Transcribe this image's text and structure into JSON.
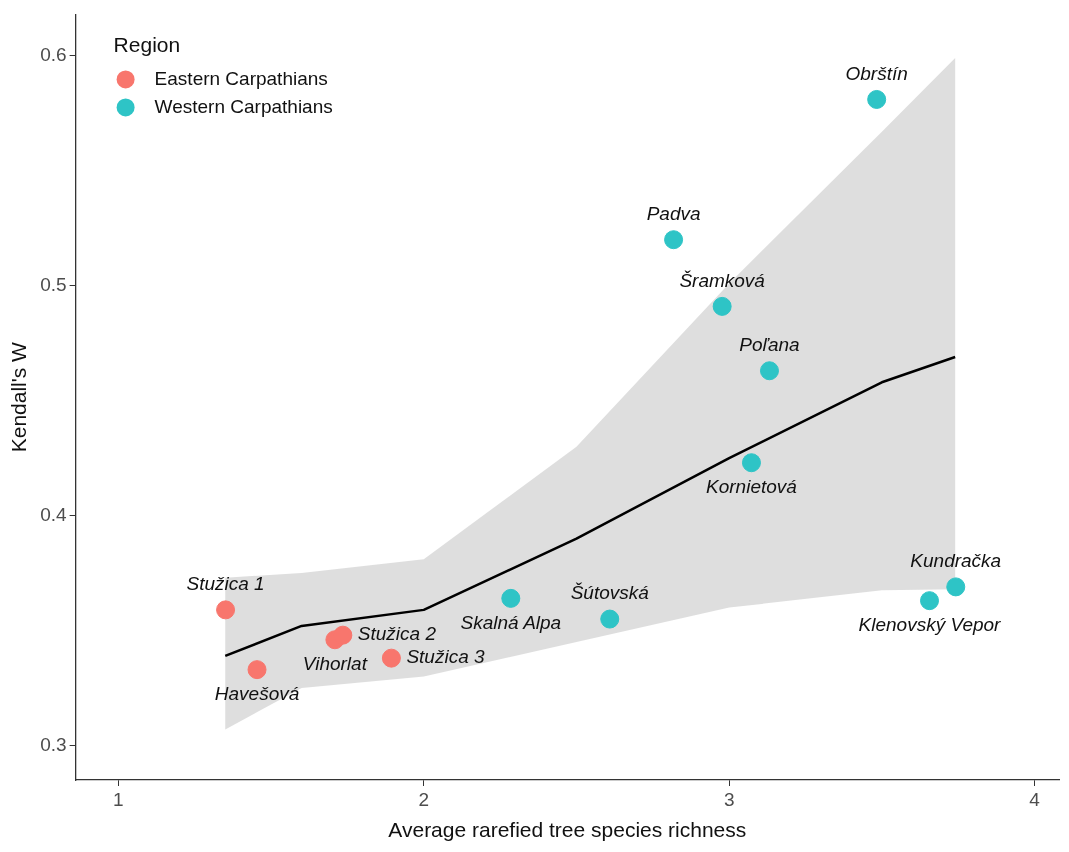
{
  "chart_data": {
    "type": "scatter",
    "xlabel": "Average rarefied tree species richness",
    "ylabel": "Kendall's W",
    "legend_title": "Region",
    "legend": "top left",
    "grid": false,
    "marker": "circle",
    "xlim": [
      0.86,
      4.08
    ],
    "ylim": [
      0.285,
      0.618
    ],
    "xticks": [
      1,
      2,
      3,
      4
    ],
    "yticks": [
      0.3,
      0.4,
      0.5,
      0.6
    ],
    "series": [
      {
        "name": "Eastern Carpathians",
        "color": "#f8766d",
        "x": [
          1.351,
          1.454,
          1.709,
          1.735,
          1.894
        ],
        "values": [
          0.359,
          0.333,
          0.346,
          0.348,
          0.338
        ]
      },
      {
        "name": "Western Carpathians",
        "color": "#2ec4c6",
        "x": [
          2.285,
          2.609,
          2.818,
          2.977,
          3.132,
          3.073,
          3.483,
          3.742,
          3.656
        ],
        "values": [
          0.364,
          0.355,
          0.52,
          0.491,
          0.463,
          0.423,
          0.581,
          0.369,
          0.363
        ]
      },
      {
        "type": "line",
        "marker": "none",
        "color": "#000000",
        "x": [
          1.35,
          1.6,
          2.0,
          2.5,
          3.0,
          3.5,
          3.74
        ],
        "values": [
          0.339,
          0.352,
          0.359,
          0.39,
          0.425,
          0.458,
          0.469
        ],
        "lower": [
          0.307,
          0.325,
          0.33,
          0.345,
          0.36,
          0.3675,
          0.368
        ],
        "upper": [
          0.373,
          0.375,
          0.381,
          0.43,
          0.501,
          0.567,
          0.599
        ]
      }
    ],
    "annotations": [
      {
        "text": "Stužica 1",
        "x": 1.351,
        "y": 0.359
      },
      {
        "text": "Havešová",
        "x": 1.454,
        "y": 0.333
      },
      {
        "text": "Vihorlat",
        "x": 1.709,
        "y": 0.346
      },
      {
        "text": "Stužica 2",
        "x": 1.735,
        "y": 0.348
      },
      {
        "text": "Stužica 3",
        "x": 1.894,
        "y": 0.338
      },
      {
        "text": "Skalná Alpa",
        "x": 2.285,
        "y": 0.364
      },
      {
        "text": "Šútovská",
        "x": 2.609,
        "y": 0.355
      },
      {
        "text": "Padva",
        "x": 2.818,
        "y": 0.52
      },
      {
        "text": "Šramková",
        "x": 2.977,
        "y": 0.491
      },
      {
        "text": "Poľana",
        "x": 3.132,
        "y": 0.463
      },
      {
        "text": "Kornietová",
        "x": 3.073,
        "y": 0.423
      },
      {
        "text": "Obrštín",
        "x": 3.483,
        "y": 0.581
      },
      {
        "text": "Kundračka",
        "x": 3.742,
        "y": 0.369
      },
      {
        "text": "Klenovský Vepor",
        "x": 3.656,
        "y": 0.363
      }
    ]
  }
}
